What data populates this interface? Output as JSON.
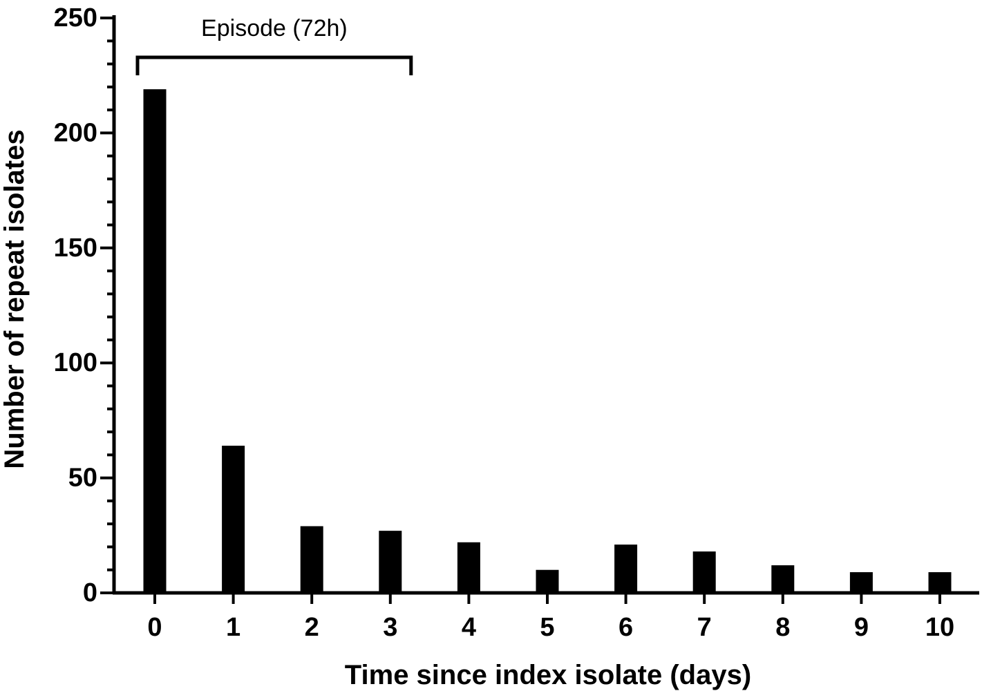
{
  "chart_data": {
    "type": "bar",
    "title": "",
    "xlabel": "Time since index isolate (days)",
    "ylabel": "Number of repeat isolates",
    "categories": [
      "0",
      "1",
      "2",
      "3",
      "4",
      "5",
      "6",
      "7",
      "8",
      "9",
      "10"
    ],
    "values": [
      219,
      64,
      29,
      27,
      22,
      10,
      21,
      18,
      12,
      9,
      9
    ],
    "ylim": [
      0,
      250
    ],
    "yticks": [
      "0",
      "50",
      "100",
      "150",
      "200",
      "250"
    ],
    "grid": false,
    "bar_color": "#000000",
    "annotation": {
      "text": "Episode (72h)",
      "span": [
        "0",
        "3"
      ]
    }
  }
}
